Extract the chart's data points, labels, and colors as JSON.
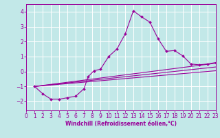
{
  "xlabel": "Windchill (Refroidissement éolien,°C)",
  "background_color": "#c2e8e8",
  "line_color": "#990099",
  "grid_color": "#ffffff",
  "xlim": [
    0,
    23
  ],
  "ylim": [
    -2.6,
    4.5
  ],
  "xticks": [
    0,
    1,
    2,
    3,
    4,
    5,
    6,
    7,
    8,
    9,
    10,
    11,
    12,
    13,
    14,
    15,
    16,
    17,
    18,
    19,
    20,
    21,
    22,
    23
  ],
  "yticks": [
    -2,
    -1,
    0,
    1,
    2,
    3,
    4
  ],
  "series": [
    [
      1,
      -1.0
    ],
    [
      2,
      -1.5
    ],
    [
      3,
      -1.85
    ],
    [
      4,
      -1.85
    ],
    [
      5,
      -1.75
    ],
    [
      6,
      -1.65
    ],
    [
      7,
      -1.15
    ],
    [
      7.5,
      -0.35
    ],
    [
      8.2,
      0.05
    ],
    [
      9,
      0.15
    ],
    [
      10,
      1.0
    ],
    [
      11,
      1.5
    ],
    [
      12,
      2.5
    ],
    [
      13,
      4.05
    ],
    [
      14,
      3.65
    ],
    [
      15,
      3.3
    ],
    [
      16,
      2.2
    ],
    [
      17,
      1.35
    ],
    [
      18,
      1.4
    ],
    [
      19,
      1.05
    ],
    [
      20,
      0.5
    ],
    [
      21,
      0.45
    ],
    [
      22,
      0.5
    ],
    [
      23,
      0.6
    ]
  ],
  "line2": [
    [
      1,
      -1.0
    ],
    [
      23,
      0.55
    ]
  ],
  "line3": [
    [
      1,
      -1.0
    ],
    [
      23,
      0.3
    ]
  ],
  "line4": [
    [
      1,
      -1.0
    ],
    [
      23,
      0.05
    ]
  ],
  "xlabel_fontsize": 5.5,
  "tick_fontsize": 5.5
}
